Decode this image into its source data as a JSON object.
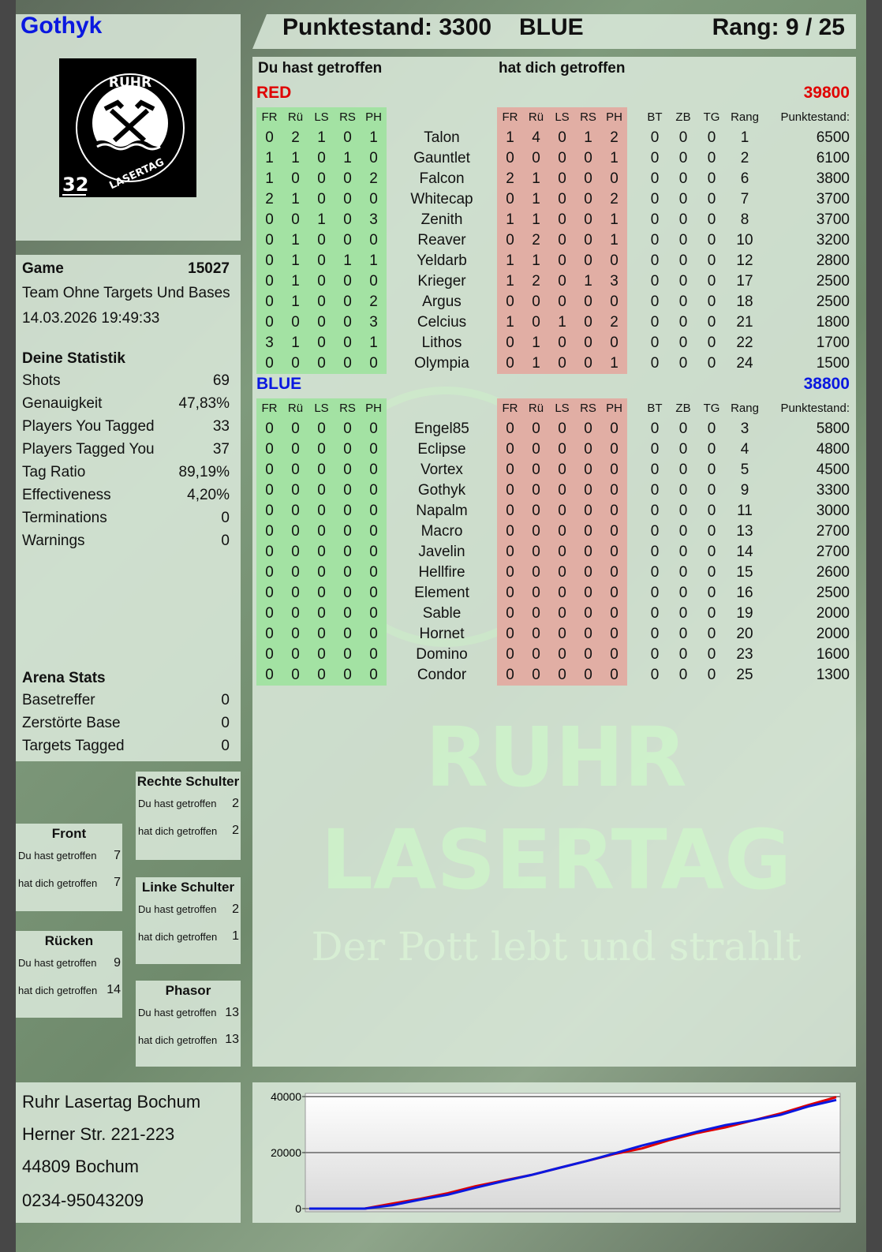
{
  "player": {
    "name": "Gothyk",
    "score_label": "Punktestand: 3300",
    "team": "BLUE",
    "rank_label": "Rang: 9 / 25"
  },
  "logo": {
    "top": "RUHR",
    "bottom": "LASERTAG",
    "number": "32"
  },
  "watermark": {
    "line1": "RUHR",
    "line2": "LASERTAG",
    "slogan": "Der Pott lebt und strahlt"
  },
  "game": {
    "label": "Game",
    "id": "15027",
    "mode": "Team Ohne Targets Und Bases",
    "datetime": "14.03.2026 19:49:33"
  },
  "stats": {
    "title": "Deine Statistik",
    "items": [
      {
        "label": "Shots",
        "value": "69"
      },
      {
        "label": "Genauigkeit",
        "value": "47,83%"
      },
      {
        "label": "Players You Tagged",
        "value": "33"
      },
      {
        "label": "Players Tagged You",
        "value": "37"
      },
      {
        "label": "Tag Ratio",
        "value": "89,19%"
      },
      {
        "label": "Effectiveness",
        "value": "4,20%"
      },
      {
        "label": "Terminations",
        "value": "0"
      },
      {
        "label": "Warnings",
        "value": "0"
      }
    ]
  },
  "arena": {
    "title": "Arena Stats",
    "items": [
      {
        "label": "Basetreffer",
        "value": "0"
      },
      {
        "label": "Zerstörte Base",
        "value": "0"
      },
      {
        "label": "Targets Tagged",
        "value": "0"
      }
    ]
  },
  "zones": [
    {
      "title": "Rechte Schulter",
      "hit_label": "Du hast getroffen",
      "hit": "2",
      "got_label": "hat dich getroffen",
      "got": "2"
    },
    {
      "title": "Front",
      "hit_label": "Du hast getroffen",
      "hit": "7",
      "got_label": "hat dich getroffen",
      "got": "7"
    },
    {
      "title": "Linke Schulter",
      "hit_label": "Du hast getroffen",
      "hit": "2",
      "got_label": "hat dich getroffen",
      "got": "1"
    },
    {
      "title": "Rücken",
      "hit_label": "Du hast getroffen",
      "hit": "9",
      "got_label": "hat dich getroffen",
      "got": "14"
    },
    {
      "title": "Phasor",
      "hit_label": "Du hast getroffen",
      "hit": "13",
      "got_label": "hat dich getroffen",
      "got": "13"
    }
  ],
  "address": {
    "name": "Ruhr Lasertag Bochum",
    "street": "Herner Str. 221-223",
    "city": "44809 Bochum",
    "phone": "0234-95043209"
  },
  "table": {
    "you_hit": "Du hast getroffen",
    "hit_you": "hat dich getroffen",
    "hit_cols": [
      "FR",
      "Rü",
      "LS",
      "RS",
      "PH"
    ],
    "extra_cols": [
      "BT",
      "ZB",
      "TG",
      "Rang",
      "Punktestand:"
    ],
    "teams": [
      {
        "name": "RED",
        "score": "39800",
        "color": "#e00000",
        "players": [
          {
            "name": "Talon",
            "hit": [
              0,
              2,
              1,
              0,
              1
            ],
            "got": [
              1,
              4,
              0,
              1,
              2
            ],
            "bt": 0,
            "zb": 0,
            "tg": 0,
            "rank": 1,
            "score": 6500
          },
          {
            "name": "Gauntlet",
            "hit": [
              1,
              1,
              0,
              1,
              0
            ],
            "got": [
              0,
              0,
              0,
              0,
              1
            ],
            "bt": 0,
            "zb": 0,
            "tg": 0,
            "rank": 2,
            "score": 6100
          },
          {
            "name": "Falcon",
            "hit": [
              1,
              0,
              0,
              0,
              2
            ],
            "got": [
              2,
              1,
              0,
              0,
              0
            ],
            "bt": 0,
            "zb": 0,
            "tg": 0,
            "rank": 6,
            "score": 3800
          },
          {
            "name": "Whitecap",
            "hit": [
              2,
              1,
              0,
              0,
              0
            ],
            "got": [
              0,
              1,
              0,
              0,
              2
            ],
            "bt": 0,
            "zb": 0,
            "tg": 0,
            "rank": 7,
            "score": 3700
          },
          {
            "name": "Zenith",
            "hit": [
              0,
              0,
              1,
              0,
              3
            ],
            "got": [
              1,
              1,
              0,
              0,
              1
            ],
            "bt": 0,
            "zb": 0,
            "tg": 0,
            "rank": 8,
            "score": 3700
          },
          {
            "name": "Reaver",
            "hit": [
              0,
              1,
              0,
              0,
              0
            ],
            "got": [
              0,
              2,
              0,
              0,
              1
            ],
            "bt": 0,
            "zb": 0,
            "tg": 0,
            "rank": 10,
            "score": 3200
          },
          {
            "name": "Yeldarb",
            "hit": [
              0,
              1,
              0,
              1,
              1
            ],
            "got": [
              1,
              1,
              0,
              0,
              0
            ],
            "bt": 0,
            "zb": 0,
            "tg": 0,
            "rank": 12,
            "score": 2800
          },
          {
            "name": "Krieger",
            "hit": [
              0,
              1,
              0,
              0,
              0
            ],
            "got": [
              1,
              2,
              0,
              1,
              3
            ],
            "bt": 0,
            "zb": 0,
            "tg": 0,
            "rank": 17,
            "score": 2500
          },
          {
            "name": "Argus",
            "hit": [
              0,
              1,
              0,
              0,
              2
            ],
            "got": [
              0,
              0,
              0,
              0,
              0
            ],
            "bt": 0,
            "zb": 0,
            "tg": 0,
            "rank": 18,
            "score": 2500
          },
          {
            "name": "Celcius",
            "hit": [
              0,
              0,
              0,
              0,
              3
            ],
            "got": [
              1,
              0,
              1,
              0,
              2
            ],
            "bt": 0,
            "zb": 0,
            "tg": 0,
            "rank": 21,
            "score": 1800
          },
          {
            "name": "Lithos",
            "hit": [
              3,
              1,
              0,
              0,
              1
            ],
            "got": [
              0,
              1,
              0,
              0,
              0
            ],
            "bt": 0,
            "zb": 0,
            "tg": 0,
            "rank": 22,
            "score": 1700
          },
          {
            "name": "Olympia",
            "hit": [
              0,
              0,
              0,
              0,
              0
            ],
            "got": [
              0,
              1,
              0,
              0,
              1
            ],
            "bt": 0,
            "zb": 0,
            "tg": 0,
            "rank": 24,
            "score": 1500
          }
        ]
      },
      {
        "name": "BLUE",
        "score": "38800",
        "color": "#0a18e0",
        "players": [
          {
            "name": "Engel85",
            "hit": [
              0,
              0,
              0,
              0,
              0
            ],
            "got": [
              0,
              0,
              0,
              0,
              0
            ],
            "bt": 0,
            "zb": 0,
            "tg": 0,
            "rank": 3,
            "score": 5800
          },
          {
            "name": "Eclipse",
            "hit": [
              0,
              0,
              0,
              0,
              0
            ],
            "got": [
              0,
              0,
              0,
              0,
              0
            ],
            "bt": 0,
            "zb": 0,
            "tg": 0,
            "rank": 4,
            "score": 4800
          },
          {
            "name": "Vortex",
            "hit": [
              0,
              0,
              0,
              0,
              0
            ],
            "got": [
              0,
              0,
              0,
              0,
              0
            ],
            "bt": 0,
            "zb": 0,
            "tg": 0,
            "rank": 5,
            "score": 4500
          },
          {
            "name": "Gothyk",
            "hit": [
              0,
              0,
              0,
              0,
              0
            ],
            "got": [
              0,
              0,
              0,
              0,
              0
            ],
            "bt": 0,
            "zb": 0,
            "tg": 0,
            "rank": 9,
            "score": 3300
          },
          {
            "name": "Napalm",
            "hit": [
              0,
              0,
              0,
              0,
              0
            ],
            "got": [
              0,
              0,
              0,
              0,
              0
            ],
            "bt": 0,
            "zb": 0,
            "tg": 0,
            "rank": 11,
            "score": 3000
          },
          {
            "name": "Macro",
            "hit": [
              0,
              0,
              0,
              0,
              0
            ],
            "got": [
              0,
              0,
              0,
              0,
              0
            ],
            "bt": 0,
            "zb": 0,
            "tg": 0,
            "rank": 13,
            "score": 2700
          },
          {
            "name": "Javelin",
            "hit": [
              0,
              0,
              0,
              0,
              0
            ],
            "got": [
              0,
              0,
              0,
              0,
              0
            ],
            "bt": 0,
            "zb": 0,
            "tg": 0,
            "rank": 14,
            "score": 2700
          },
          {
            "name": "Hellfire",
            "hit": [
              0,
              0,
              0,
              0,
              0
            ],
            "got": [
              0,
              0,
              0,
              0,
              0
            ],
            "bt": 0,
            "zb": 0,
            "tg": 0,
            "rank": 15,
            "score": 2600
          },
          {
            "name": "Element",
            "hit": [
              0,
              0,
              0,
              0,
              0
            ],
            "got": [
              0,
              0,
              0,
              0,
              0
            ],
            "bt": 0,
            "zb": 0,
            "tg": 0,
            "rank": 16,
            "score": 2500
          },
          {
            "name": "Sable",
            "hit": [
              0,
              0,
              0,
              0,
              0
            ],
            "got": [
              0,
              0,
              0,
              0,
              0
            ],
            "bt": 0,
            "zb": 0,
            "tg": 0,
            "rank": 19,
            "score": 2000
          },
          {
            "name": "Hornet",
            "hit": [
              0,
              0,
              0,
              0,
              0
            ],
            "got": [
              0,
              0,
              0,
              0,
              0
            ],
            "bt": 0,
            "zb": 0,
            "tg": 0,
            "rank": 20,
            "score": 2000
          },
          {
            "name": "Domino",
            "hit": [
              0,
              0,
              0,
              0,
              0
            ],
            "got": [
              0,
              0,
              0,
              0,
              0
            ],
            "bt": 0,
            "zb": 0,
            "tg": 0,
            "rank": 23,
            "score": 1600
          },
          {
            "name": "Condor",
            "hit": [
              0,
              0,
              0,
              0,
              0
            ],
            "got": [
              0,
              0,
              0,
              0,
              0
            ],
            "bt": 0,
            "zb": 0,
            "tg": 0,
            "rank": 25,
            "score": 1300
          }
        ]
      }
    ]
  },
  "chart_data": {
    "type": "line",
    "ylim": [
      0,
      40000
    ],
    "yticks": [
      "0",
      "20000",
      "40000"
    ],
    "grid": true,
    "series": [
      {
        "color": "#e00000",
        "values": [
          0,
          0,
          0,
          1800,
          3500,
          5500,
          8000,
          10000,
          12000,
          14500,
          17000,
          19500,
          21500,
          24500,
          27000,
          29000,
          31500,
          34000,
          37000,
          39800
        ]
      },
      {
        "color": "#0a18e0",
        "values": [
          0,
          0,
          0,
          1200,
          3200,
          5000,
          7500,
          9800,
          12000,
          14500,
          17000,
          19700,
          22500,
          25000,
          27500,
          29800,
          31500,
          33500,
          36500,
          38800
        ]
      }
    ]
  }
}
